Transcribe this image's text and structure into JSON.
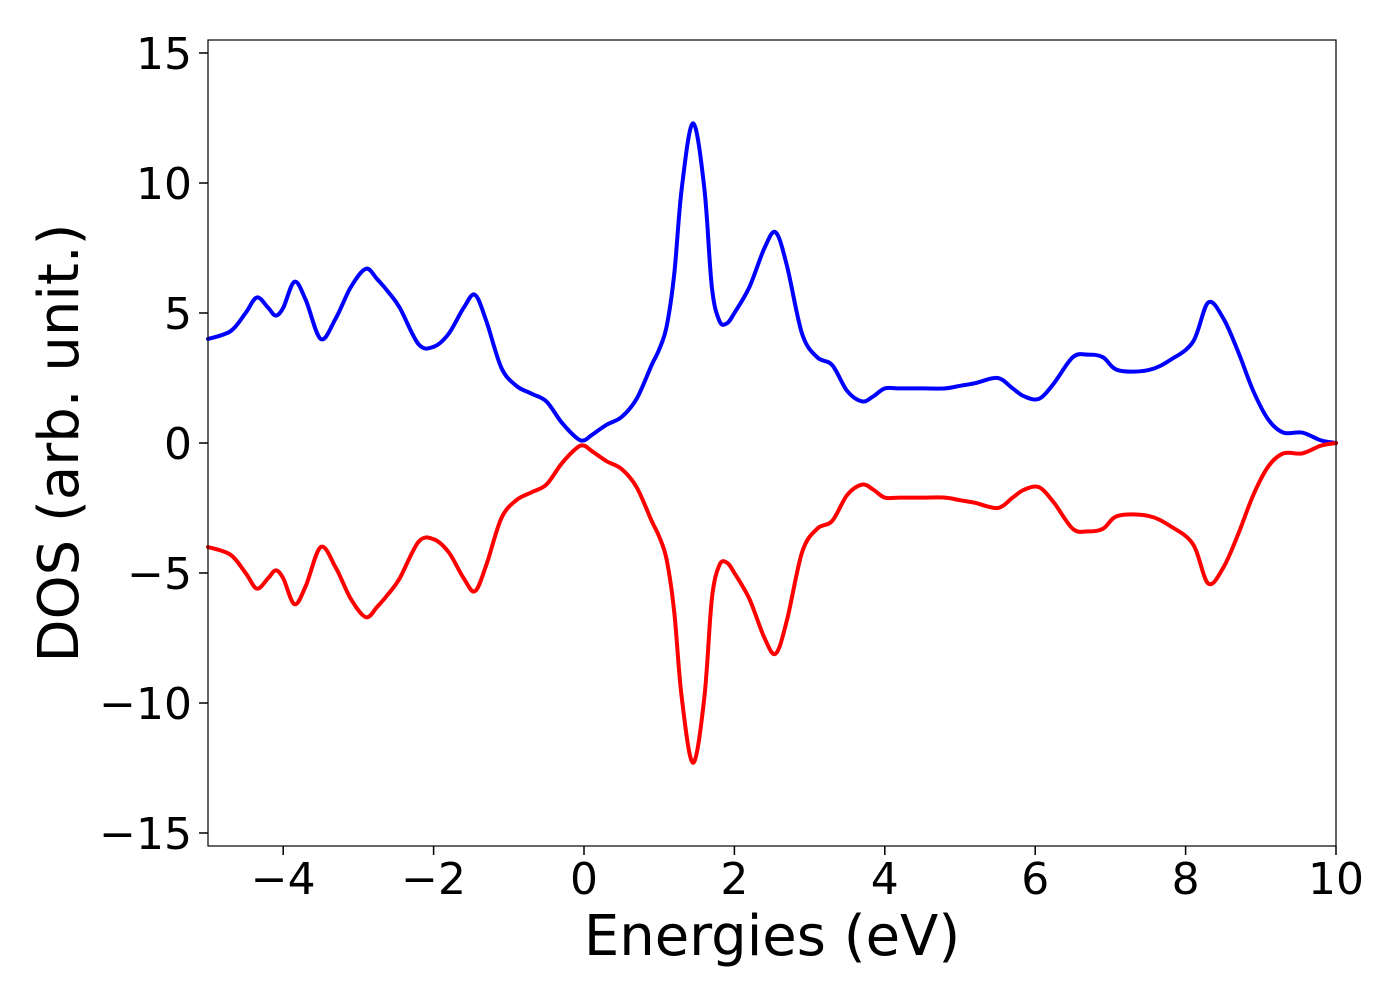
{
  "chart_data": {
    "type": "line",
    "title": "",
    "xlabel": "Energies (eV)",
    "ylabel": "DOS (arb. unit.)",
    "xlim": [
      -5,
      10
    ],
    "ylim": [
      -15.5,
      15.5
    ],
    "xticks": [
      -4,
      -2,
      0,
      2,
      4,
      6,
      8,
      10
    ],
    "xtick_labels": [
      "−4",
      "−2",
      "0",
      "2",
      "4",
      "6",
      "8",
      "10"
    ],
    "yticks": [
      -15,
      -10,
      -5,
      0,
      5,
      10,
      15
    ],
    "ytick_labels": [
      "−15",
      "−10",
      "−5",
      "0",
      "5",
      "10",
      "15"
    ],
    "grid": false,
    "legend": "none",
    "series": [
      {
        "color": "#0000ff",
        "x": [
          -5,
          -4.7,
          -4.5,
          -4.35,
          -4.2,
          -4.1,
          -4.0,
          -3.85,
          -3.7,
          -3.5,
          -3.3,
          -3.1,
          -2.9,
          -2.75,
          -2.6,
          -2.45,
          -2.2,
          -2.0,
          -1.8,
          -1.6,
          -1.45,
          -1.3,
          -1.1,
          -0.9,
          -0.7,
          -0.5,
          -0.3,
          -0.1,
          0.0,
          0.1,
          0.3,
          0.5,
          0.7,
          0.9,
          1.0,
          1.1,
          1.2,
          1.3,
          1.45,
          1.6,
          1.7,
          1.8,
          1.9,
          2.0,
          2.2,
          2.4,
          2.55,
          2.7,
          2.9,
          3.1,
          3.3,
          3.5,
          3.7,
          3.85,
          4.0,
          4.2,
          4.5,
          4.8,
          5.0,
          5.2,
          5.5,
          5.7,
          5.85,
          6.05,
          6.25,
          6.5,
          6.7,
          6.9,
          7.1,
          7.5,
          7.8,
          8.1,
          8.3,
          8.5,
          8.7,
          8.9,
          9.1,
          9.3,
          9.55,
          9.8,
          10.0
        ],
        "y": [
          4.0,
          4.3,
          5.0,
          5.6,
          5.2,
          4.9,
          5.2,
          6.2,
          5.5,
          4.0,
          4.8,
          6.0,
          6.7,
          6.3,
          5.8,
          5.2,
          3.8,
          3.7,
          4.2,
          5.2,
          5.7,
          4.7,
          2.9,
          2.2,
          1.9,
          1.6,
          0.8,
          0.2,
          0.1,
          0.3,
          0.7,
          1.0,
          1.7,
          3.0,
          3.6,
          4.5,
          6.5,
          9.8,
          12.3,
          9.8,
          6.0,
          4.7,
          4.6,
          5.0,
          6.0,
          7.5,
          8.1,
          6.8,
          4.2,
          3.3,
          3.0,
          2.0,
          1.6,
          1.8,
          2.1,
          2.1,
          2.1,
          2.1,
          2.2,
          2.3,
          2.5,
          2.1,
          1.8,
          1.7,
          2.3,
          3.3,
          3.4,
          3.3,
          2.8,
          2.8,
          3.2,
          3.9,
          5.4,
          4.8,
          3.5,
          2.0,
          0.9,
          0.4,
          0.4,
          0.1,
          0.0
        ]
      },
      {
        "color": "#ff0000",
        "x": [
          -5,
          -4.7,
          -4.5,
          -4.35,
          -4.2,
          -4.1,
          -4.0,
          -3.85,
          -3.7,
          -3.5,
          -3.3,
          -3.1,
          -2.9,
          -2.75,
          -2.6,
          -2.45,
          -2.2,
          -2.0,
          -1.8,
          -1.6,
          -1.45,
          -1.3,
          -1.1,
          -0.9,
          -0.7,
          -0.5,
          -0.3,
          -0.1,
          0.0,
          0.1,
          0.3,
          0.5,
          0.7,
          0.9,
          1.0,
          1.1,
          1.2,
          1.3,
          1.45,
          1.6,
          1.7,
          1.8,
          1.9,
          2.0,
          2.2,
          2.4,
          2.55,
          2.7,
          2.9,
          3.1,
          3.3,
          3.5,
          3.7,
          3.85,
          4.0,
          4.2,
          4.5,
          4.8,
          5.0,
          5.2,
          5.5,
          5.7,
          5.85,
          6.05,
          6.25,
          6.5,
          6.7,
          6.9,
          7.1,
          7.5,
          7.8,
          8.1,
          8.3,
          8.5,
          8.7,
          8.9,
          9.1,
          9.3,
          9.55,
          9.8,
          10.0
        ],
        "y": [
          -4.0,
          -4.3,
          -5.0,
          -5.6,
          -5.2,
          -4.9,
          -5.2,
          -6.2,
          -5.5,
          -4.0,
          -4.8,
          -6.0,
          -6.7,
          -6.3,
          -5.8,
          -5.2,
          -3.8,
          -3.7,
          -4.2,
          -5.2,
          -5.7,
          -4.7,
          -2.9,
          -2.2,
          -1.9,
          -1.6,
          -0.8,
          -0.2,
          -0.1,
          -0.3,
          -0.7,
          -1.0,
          -1.7,
          -3.0,
          -3.6,
          -4.5,
          -6.5,
          -9.8,
          -12.3,
          -9.8,
          -6.0,
          -4.7,
          -4.6,
          -5.0,
          -6.0,
          -7.5,
          -8.1,
          -6.8,
          -4.2,
          -3.3,
          -3.0,
          -2.0,
          -1.6,
          -1.8,
          -2.1,
          -2.1,
          -2.1,
          -2.1,
          -2.2,
          -2.3,
          -2.5,
          -2.1,
          -1.8,
          -1.7,
          -2.3,
          -3.3,
          -3.4,
          -3.3,
          -2.8,
          -2.8,
          -3.2,
          -3.9,
          -5.4,
          -4.8,
          -3.5,
          -2.0,
          -0.9,
          -0.4,
          -0.4,
          -0.1,
          0.0
        ]
      }
    ]
  }
}
